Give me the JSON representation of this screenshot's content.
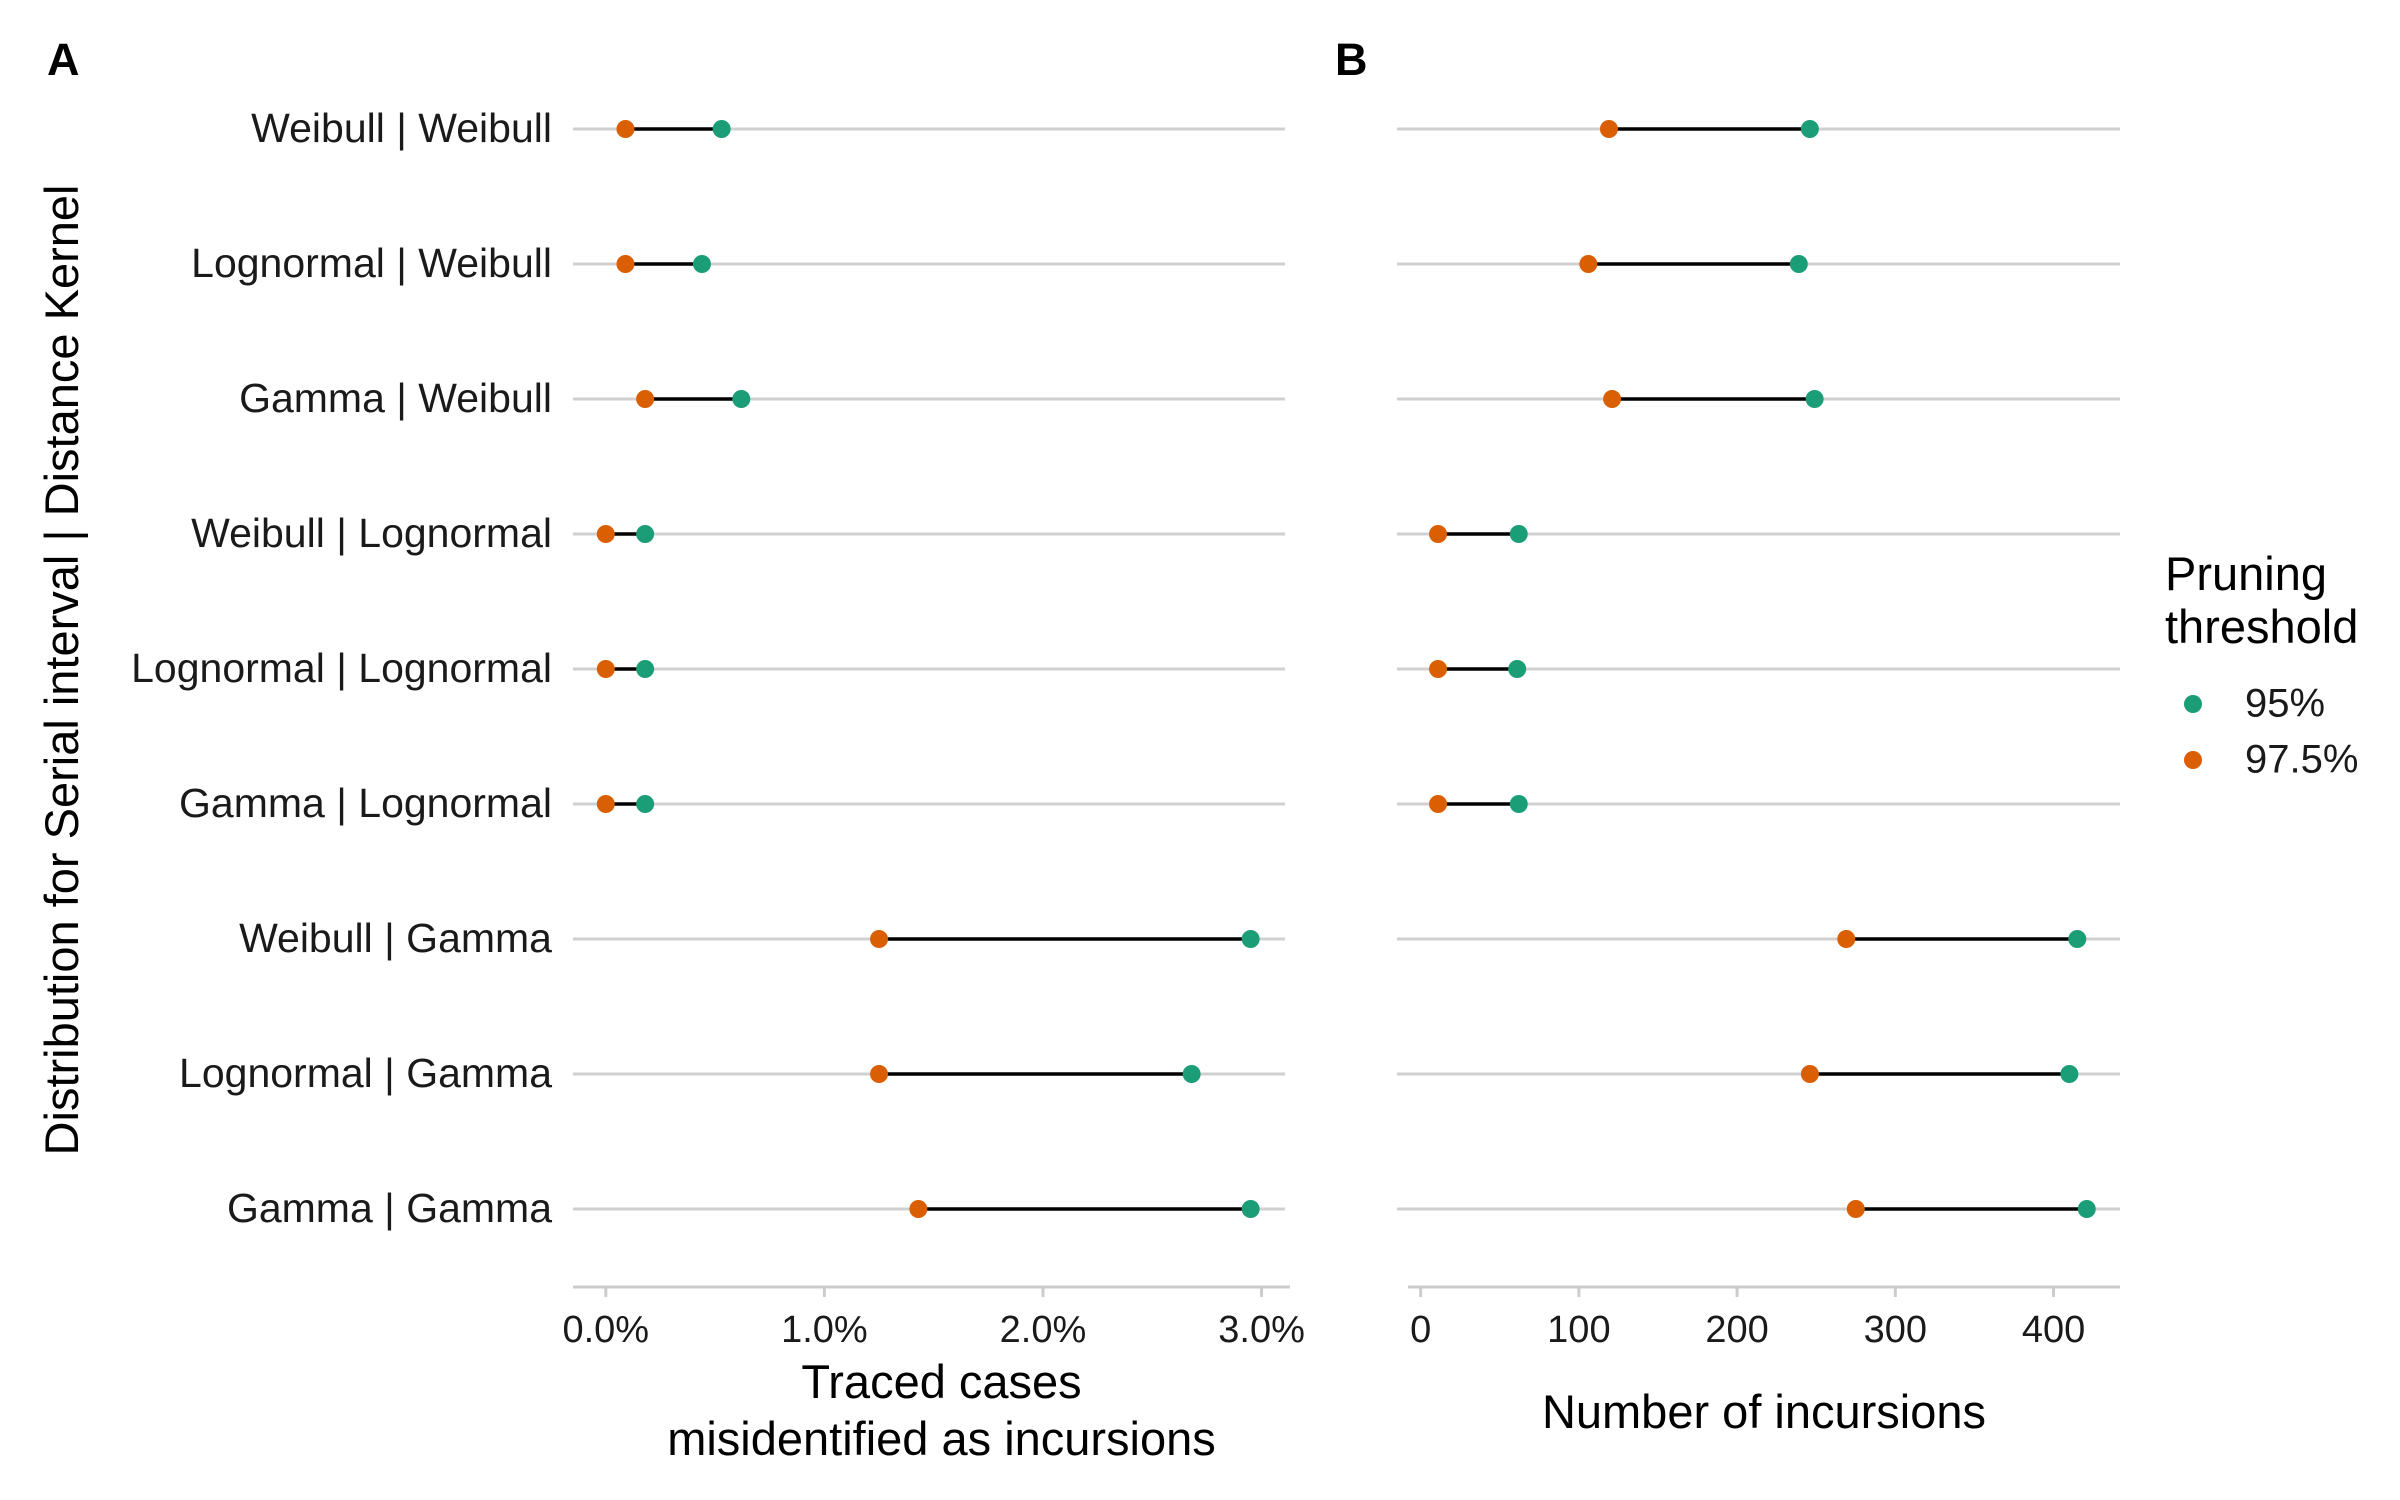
{
  "colors": {
    "threshold_95": "#1b9e77",
    "threshold_975": "#d95f02"
  },
  "ylabel": "Distribution for Serial interval | Distance Kernel",
  "legend": {
    "title_line1": "Pruning",
    "title_line2": "threshold",
    "items": [
      "95%",
      "97.5%"
    ]
  },
  "chart_data": [
    {
      "type": "dumbbell",
      "panel_label": "A",
      "categories": [
        "Weibull | Weibull",
        "Lognormal | Weibull",
        "Gamma | Weibull",
        "Weibull | Lognormal",
        "Lognormal | Lognormal",
        "Gamma | Lognormal",
        "Weibull | Gamma",
        "Lognormal | Gamma",
        "Gamma | Gamma"
      ],
      "series": [
        {
          "name": "95%",
          "values": [
            0.53,
            0.44,
            0.62,
            0.18,
            0.18,
            0.18,
            2.95,
            2.68,
            2.95
          ]
        },
        {
          "name": "97.5%",
          "values": [
            0.09,
            0.09,
            0.18,
            0.0,
            0.0,
            0.0,
            1.25,
            1.25,
            1.43
          ]
        }
      ],
      "xlim": [
        -0.15,
        3.13
      ],
      "xticks": [
        0,
        1,
        2,
        3
      ],
      "xtick_labels": [
        "0.0%",
        "1.0%",
        "2.0%",
        "3.0%"
      ],
      "xlabel_line1": "Traced cases",
      "xlabel_line2": "misidentified as incursions"
    },
    {
      "type": "dumbbell",
      "panel_label": "B",
      "categories": [
        "Weibull | Weibull",
        "Lognormal | Weibull",
        "Gamma | Weibull",
        "Weibull | Lognormal",
        "Lognormal | Lognormal",
        "Gamma | Lognormal",
        "Weibull | Gamma",
        "Lognormal | Gamma",
        "Gamma | Gamma"
      ],
      "series": [
        {
          "name": "95%",
          "values": [
            246,
            239,
            249,
            62,
            61,
            62,
            415,
            410,
            421
          ]
        },
        {
          "name": "97.5%",
          "values": [
            119,
            106,
            121,
            11,
            11,
            11,
            269,
            246,
            275
          ]
        }
      ],
      "xlim": [
        -8,
        442
      ],
      "xticks": [
        0,
        100,
        200,
        300,
        400
      ],
      "xtick_labels": [
        "0",
        "100",
        "200",
        "300",
        "400"
      ],
      "xlabel_line1": "Number of incursions",
      "xlabel_line2": ""
    }
  ]
}
